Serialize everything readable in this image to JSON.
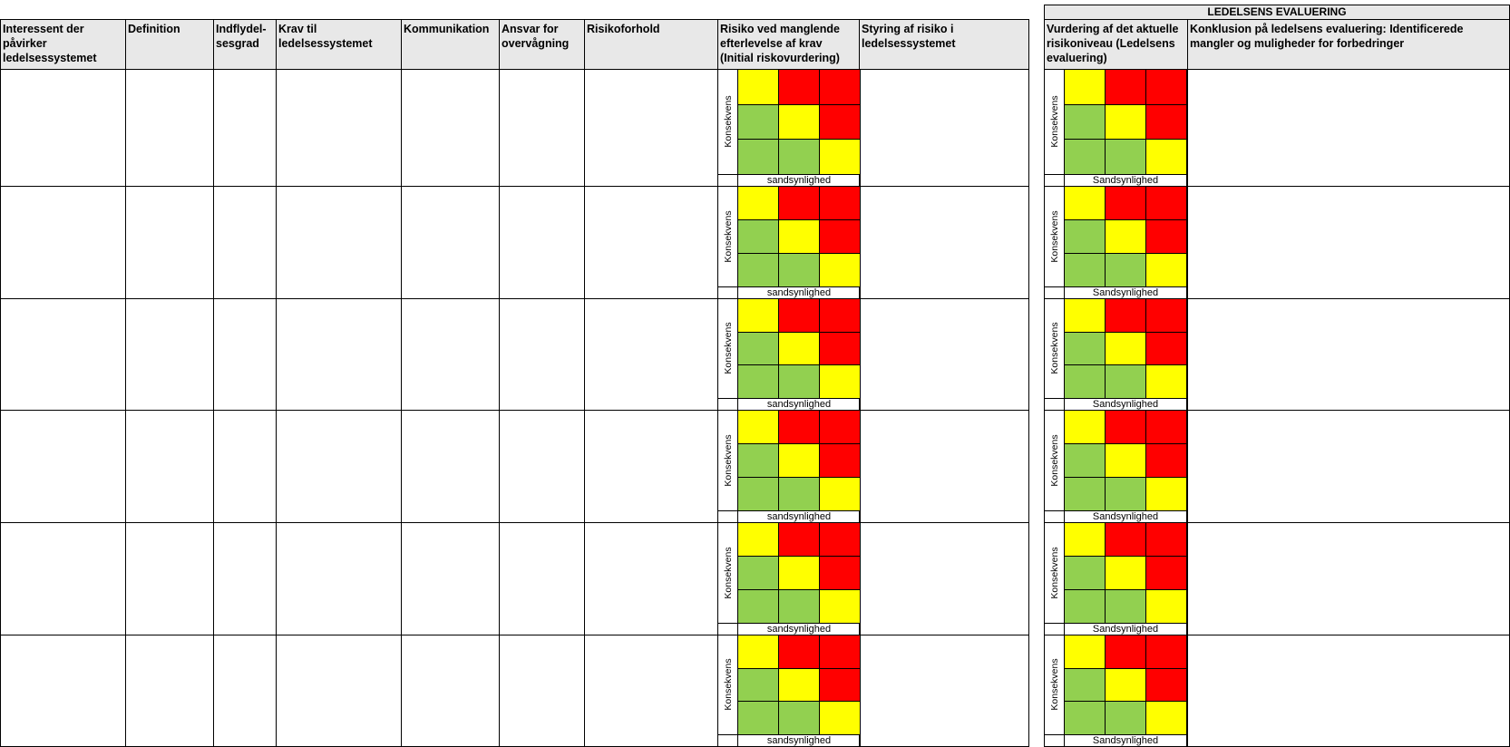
{
  "headers": [
    "Interessent der påvirker ledelsessystemet",
    "Definition",
    "Indflydel-sesgrad",
    "Krav til ledelsessystemet",
    "Kommunikation",
    "Ansvar for overvågning",
    "Risikoforhold",
    "Risiko ved manglende efterlevelse af krav (Initial riskovurdering)",
    "Styring af risiko i ledelsessystemet"
  ],
  "evaluation": {
    "title": "LEDELSENS EVALUERING",
    "headers": [
      "Vurdering af det aktuelle risikoniveau (Ledelsens evaluering)",
      "Konklusion på ledelsens evaluering: Identificerede mangler og muligheder for forbedringer"
    ]
  },
  "matrix": {
    "consequence_label": "Konsekvens",
    "likelihood_label_initial": "sandsynlighed",
    "likelihood_label_eval": "Sandsynlighed",
    "colors": {
      "green": "#92d050",
      "yellow": "#ffff00",
      "red": "#ff0000"
    },
    "grid": [
      [
        "yellow",
        "red",
        "red"
      ],
      [
        "green",
        "yellow",
        "red"
      ],
      [
        "green",
        "green",
        "yellow"
      ]
    ]
  },
  "row_count": 6
}
